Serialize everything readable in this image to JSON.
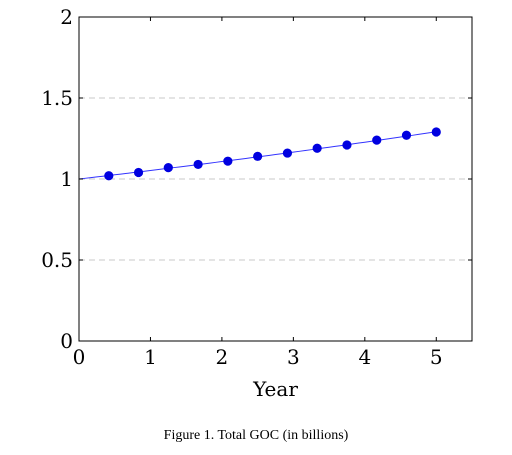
{
  "caption": "Figure 1. Total GOC (in billions)",
  "chart_data": {
    "type": "line",
    "title": "",
    "xlabel": "Year",
    "ylabel": "",
    "xlim": [
      0,
      5.5
    ],
    "ylim": [
      0,
      2
    ],
    "xticks": [
      0,
      1,
      2,
      3,
      4,
      5
    ],
    "xtick_labels": [
      "0",
      "1",
      "2",
      "3",
      "4",
      "5"
    ],
    "yticks": [
      0,
      0.5,
      1,
      1.5,
      2
    ],
    "ytick_labels": [
      "0",
      "0.5",
      "1",
      "1.5",
      "2"
    ],
    "y_grid": true,
    "x_grid": false,
    "legend": "none",
    "line_color": "#3333ff",
    "marker_color": "#0000e0",
    "line_x_range": [
      0,
      5
    ],
    "line_formula": "1.0525^x",
    "series": [
      {
        "x": [
          0.417,
          0.833,
          1.25,
          1.667,
          2.083,
          2.5,
          2.917,
          3.333,
          3.75,
          4.167,
          4.583,
          5.0
        ],
        "values": [
          1.02,
          1.04,
          1.07,
          1.09,
          1.11,
          1.14,
          1.16,
          1.19,
          1.21,
          1.24,
          1.27,
          1.29
        ]
      }
    ]
  }
}
